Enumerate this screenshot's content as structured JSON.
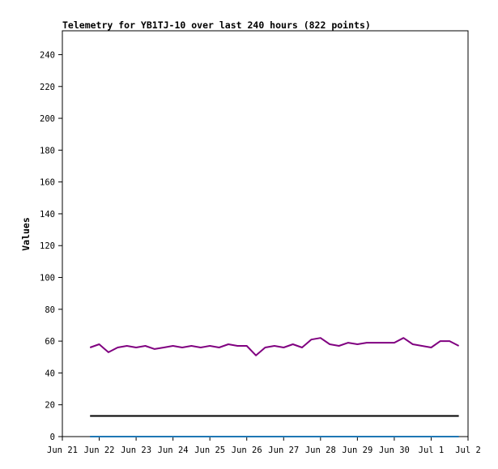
{
  "chart_data": {
    "type": "line",
    "title": "Telemetry for YB1TJ-10 over last 240 hours (822 points)",
    "xlabel": "",
    "ylabel": "Values",
    "ylim": [
      0,
      255
    ],
    "yticks": [
      0,
      20,
      40,
      60,
      80,
      100,
      120,
      140,
      160,
      180,
      200,
      220,
      240
    ],
    "xlim": [
      "2024-06-21",
      "2024-07-02"
    ],
    "xticks": [
      {
        "date": "2024-06-21",
        "label": "Jun 21"
      },
      {
        "date": "2024-06-22",
        "label": "Jun 22"
      },
      {
        "date": "2024-06-23",
        "label": "Jun 23"
      },
      {
        "date": "2024-06-24",
        "label": "Jun 24"
      },
      {
        "date": "2024-06-25",
        "label": "Jun 25"
      },
      {
        "date": "2024-06-26",
        "label": "Jun 26"
      },
      {
        "date": "2024-06-27",
        "label": "Jun 27"
      },
      {
        "date": "2024-06-28",
        "label": "Jun 28"
      },
      {
        "date": "2024-06-29",
        "label": "Jun 29"
      },
      {
        "date": "2024-06-30",
        "label": "Jun 30"
      },
      {
        "date": "2024-07-01",
        "label": "Jul 1"
      },
      {
        "date": "2024-07-02",
        "label": "Jul 2"
      }
    ],
    "grid": false,
    "legend": "none",
    "series": [
      {
        "color": "#800080",
        "x": [
          "2024-06-21T18:00",
          "2024-06-22T00:00",
          "2024-06-22T06:00",
          "2024-06-22T12:00",
          "2024-06-22T18:00",
          "2024-06-23T00:00",
          "2024-06-23T06:00",
          "2024-06-23T12:00",
          "2024-06-23T18:00",
          "2024-06-24T00:00",
          "2024-06-24T06:00",
          "2024-06-24T12:00",
          "2024-06-24T18:00",
          "2024-06-25T00:00",
          "2024-06-25T06:00",
          "2024-06-25T12:00",
          "2024-06-25T18:00",
          "2024-06-26T00:00",
          "2024-06-26T06:00",
          "2024-06-26T12:00",
          "2024-06-26T18:00",
          "2024-06-27T00:00",
          "2024-06-27T06:00",
          "2024-06-27T12:00",
          "2024-06-27T18:00",
          "2024-06-28T00:00",
          "2024-06-28T06:00",
          "2024-06-28T12:00",
          "2024-06-28T18:00",
          "2024-06-29T00:00",
          "2024-06-29T06:00",
          "2024-06-29T12:00",
          "2024-06-29T18:00",
          "2024-06-30T00:00",
          "2024-06-30T06:00",
          "2024-06-30T12:00",
          "2024-06-30T18:00",
          "2024-07-01T00:00",
          "2024-07-01T06:00",
          "2024-07-01T12:00",
          "2024-07-01T18:00"
        ],
        "y": [
          56,
          58,
          53,
          56,
          57,
          56,
          57,
          55,
          56,
          57,
          56,
          57,
          56,
          57,
          56,
          58,
          57,
          57,
          51,
          56,
          57,
          56,
          58,
          56,
          61,
          62,
          58,
          57,
          59,
          58,
          59,
          59,
          59,
          59,
          62,
          58,
          57,
          56,
          60,
          60,
          57
        ]
      },
      {
        "color": "#000000",
        "x": [
          "2024-06-21T18:00",
          "2024-07-01T18:00"
        ],
        "y": [
          13,
          13
        ]
      },
      {
        "color": "#1f77b4",
        "x": [
          "2024-06-21T18:00",
          "2024-07-01T18:00"
        ],
        "y": [
          0,
          0
        ]
      }
    ]
  }
}
